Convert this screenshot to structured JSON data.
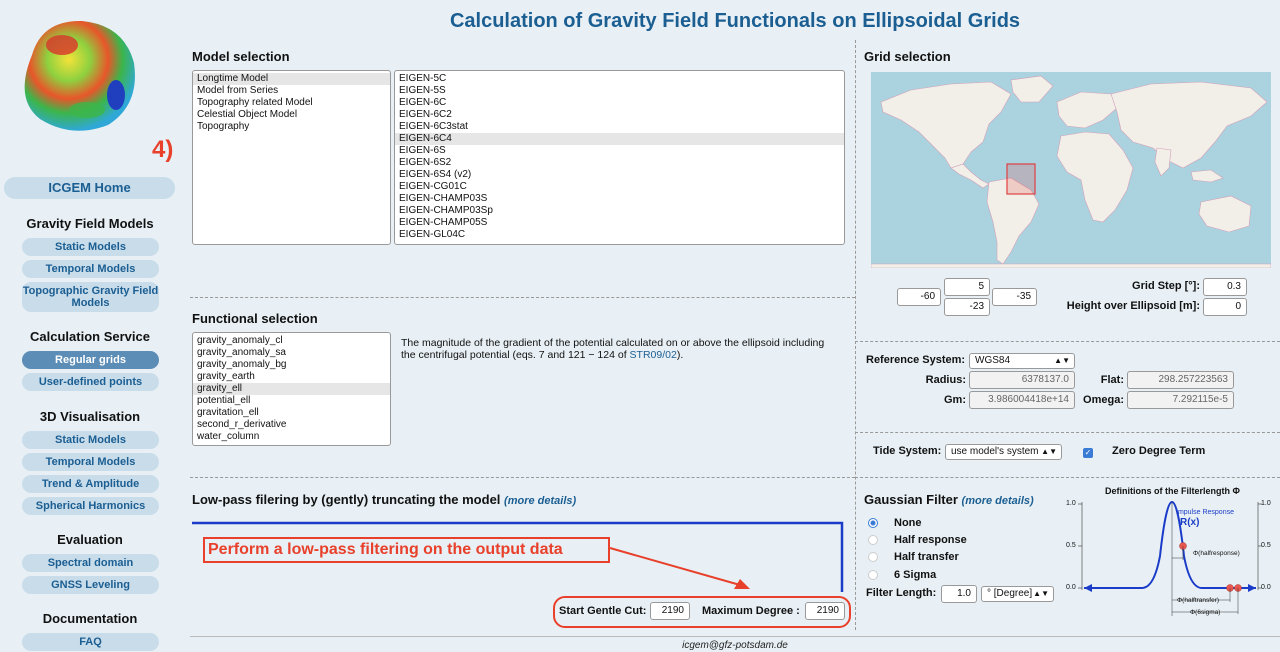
{
  "sidebar": {
    "step_label": "4)",
    "home": "ICGEM Home",
    "sections": [
      {
        "title": "Gravity Field Models",
        "items": [
          "Static Models",
          "Temporal Models",
          "Topographic Gravity Field Models"
        ]
      },
      {
        "title": "Calculation Service",
        "items": [
          "Regular grids",
          "User-defined points"
        ]
      },
      {
        "title": "3D Visualisation",
        "items": [
          "Static Models",
          "Temporal Models",
          "Trend & Amplitude",
          "Spherical Harmonics"
        ]
      },
      {
        "title": "Evaluation",
        "items": [
          "Spectral domain",
          "GNSS Leveling"
        ]
      },
      {
        "title": "Documentation",
        "items": [
          "FAQ"
        ]
      }
    ]
  },
  "title": "Calculation of Gravity Field Functionals on Ellipsoidal Grids",
  "model_selection": {
    "title": "Model selection",
    "categories": [
      "Longtime Model",
      "Model from Series",
      "Topography related Model",
      "Celestial Object Model",
      "Topography"
    ],
    "models": [
      "EIGEN-5C",
      "EIGEN-5S",
      "EIGEN-6C",
      "EIGEN-6C2",
      "EIGEN-6C3stat",
      "EIGEN-6C4",
      "EIGEN-6S",
      "EIGEN-6S2",
      "EIGEN-6S4 (v2)",
      "EIGEN-CG01C",
      "EIGEN-CHAMP03S",
      "EIGEN-CHAMP03Sp",
      "EIGEN-CHAMP05S",
      "EIGEN-GL04C"
    ]
  },
  "functional_selection": {
    "title": "Functional selection",
    "items": [
      "gravity_anomaly_cl",
      "gravity_anomaly_sa",
      "gravity_anomaly_bg",
      "gravity_earth",
      "gravity_ell",
      "potential_ell",
      "gravitation_ell",
      "second_r_derivative",
      "water_column"
    ],
    "description": "The magnitude of the gradient of the potential calculated on or above the ellipsoid including the centrifugal potential (eqs. 7 and 121 − 124 of ",
    "link": "STR09/02",
    "description_end": ")."
  },
  "grid_selection": {
    "title": "Grid selection",
    "north": "5",
    "west": "-60",
    "east": "-35",
    "south": "-23",
    "grid_step_label": "Grid Step [°]:",
    "grid_step": "0.3",
    "height_label": "Height over Ellipsoid [m]:",
    "height": "0"
  },
  "reference": {
    "system_label": "Reference System:",
    "system": "WGS84",
    "radius_label": "Radius:",
    "radius": "6378137.0",
    "flat_label": "Flat:",
    "flat": "298.257223563",
    "gm_label": "Gm:",
    "gm": "3.986004418e+14",
    "omega_label": "Omega:",
    "omega": "7.292115e-5"
  },
  "tide": {
    "label": "Tide System:",
    "value": "use model's system",
    "zero_degree": "Zero Degree Term"
  },
  "lowpass": {
    "title": "Low-pass filering by (gently) truncating the model",
    "more": "(more details)",
    "start_label": "Start Gentle Cut:",
    "start": "2190",
    "max_label": "Maximum Degree :",
    "max": "2190",
    "annotation": "Perform a low-pass filtering on the output data"
  },
  "gaussian": {
    "title": "Gaussian Filter",
    "more": "(more details)",
    "options": [
      "None",
      "Half response",
      "Half transfer",
      "6 Sigma"
    ],
    "selected": 0,
    "length_label": "Filter Length:",
    "length": "1.0",
    "unit": "° [Degree]",
    "diagram": {
      "title": "Definitions of the Filterlength Φ",
      "impulse": "Impulse Response",
      "rx": "R(x)",
      "ticks": [
        "1.0",
        "0.5",
        "0.0"
      ],
      "half_response": "Φ(halfresponse)",
      "half_transfer": "Φ(halftransfer)",
      "six_sigma": "Φ(6sigma)"
    }
  },
  "footer": "icgem@gfz-potsdam.de",
  "colors": {
    "accent": "#1b5e92",
    "annotation": "#e8402a",
    "background": "#e8f0f5"
  }
}
